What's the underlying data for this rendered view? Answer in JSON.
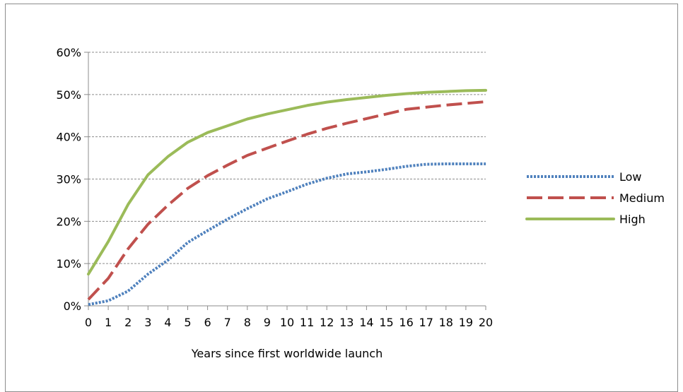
{
  "chart_data": {
    "type": "line",
    "xlabel": "Years since first worldwide launch",
    "ylabel": "",
    "x": [
      0,
      1,
      2,
      3,
      4,
      5,
      6,
      7,
      8,
      9,
      10,
      11,
      12,
      13,
      14,
      15,
      16,
      17,
      18,
      19,
      20
    ],
    "x_tick_labels": [
      "0",
      "1",
      "2",
      "3",
      "4",
      "5",
      "6",
      "7",
      "8",
      "9",
      "10",
      "11",
      "12",
      "13",
      "14",
      "15",
      "16",
      "17",
      "18",
      "19",
      "20"
    ],
    "y_tick_labels": [
      "0%",
      "10%",
      "20%",
      "30%",
      "40%",
      "50%",
      "60%"
    ],
    "y_ticks": [
      0,
      10,
      20,
      30,
      40,
      50,
      60
    ],
    "ylim": [
      0,
      60
    ],
    "xlim": [
      0,
      20
    ],
    "grid": "horizontal dashed",
    "legend_position": "right",
    "series": [
      {
        "name": "Low",
        "color": "#4f81bd",
        "style": "dotted",
        "values": [
          0.3,
          1.2,
          3.5,
          7.5,
          10.8,
          15,
          17.8,
          20.5,
          23,
          25.3,
          27,
          28.8,
          30.2,
          31.2,
          31.7,
          32.3,
          33,
          33.5,
          33.6,
          33.6,
          33.6
        ]
      },
      {
        "name": "Medium",
        "color": "#c0504d",
        "style": "dashed",
        "values": [
          1.5,
          6.5,
          13.5,
          19.3,
          23.8,
          27.8,
          30.8,
          33.3,
          35.6,
          37.3,
          39,
          40.6,
          42,
          43.2,
          44.3,
          45.4,
          46.5,
          47,
          47.5,
          47.9,
          48.3
        ]
      },
      {
        "name": "High",
        "color": "#9bbb59",
        "style": "solid",
        "values": [
          7.5,
          15.2,
          24,
          31,
          35.3,
          38.7,
          41,
          42.6,
          44.2,
          45.4,
          46.4,
          47.4,
          48.2,
          48.8,
          49.3,
          49.8,
          50.2,
          50.5,
          50.7,
          50.9,
          51
        ]
      }
    ]
  }
}
